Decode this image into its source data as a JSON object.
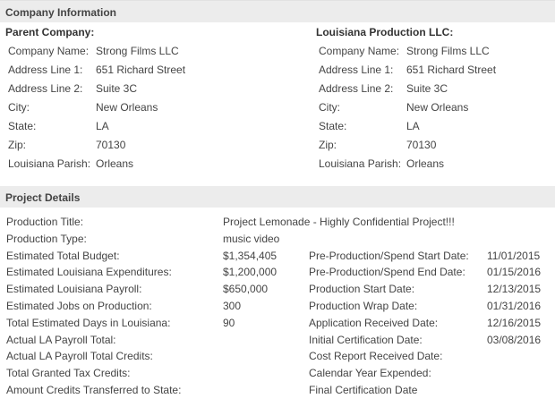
{
  "company_section": {
    "header": "Company Information",
    "parent": {
      "title": "Parent Company:",
      "rows": [
        {
          "label": "Company Name:",
          "value": "Strong Films LLC"
        },
        {
          "label": "Address Line 1:",
          "value": "651 Richard Street"
        },
        {
          "label": "Address Line 2:",
          "value": "Suite 3C"
        },
        {
          "label": "City:",
          "value": "New Orleans"
        },
        {
          "label": "State:",
          "value": "LA"
        },
        {
          "label": "Zip:",
          "value": "70130"
        },
        {
          "label": "Louisiana Parish:",
          "value": "Orleans"
        }
      ]
    },
    "louisiana": {
      "title": "Louisiana Production LLC:",
      "rows": [
        {
          "label": "Company Name:",
          "value": "Strong Films LLC"
        },
        {
          "label": "Address Line 1:",
          "value": "651 Richard Street"
        },
        {
          "label": "Address Line 2:",
          "value": "Suite 3C"
        },
        {
          "label": "City:",
          "value": "New Orleans"
        },
        {
          "label": "State:",
          "value": "LA"
        },
        {
          "label": "Zip:",
          "value": "70130"
        },
        {
          "label": "Louisiana Parish:",
          "value": "Orleans"
        }
      ]
    }
  },
  "project_section": {
    "header": "Project Details",
    "left_rows": [
      {
        "label": "Production Title:",
        "value": "Project Lemonade - Highly Confidential Project!!!"
      },
      {
        "label": "Production Type:",
        "value": "music video"
      },
      {
        "label": "Estimated Total Budget:",
        "value": "$1,354,405"
      },
      {
        "label": "Estimated Louisiana Expenditures:",
        "value": "$1,200,000"
      },
      {
        "label": "Estimated Louisiana Payroll:",
        "value": "$650,000"
      },
      {
        "label": "Estimated Jobs on Production:",
        "value": "300"
      },
      {
        "label": "Total Estimated Days in Louisiana:",
        "value": "90"
      },
      {
        "label": "Actual LA Payroll Total:",
        "value": ""
      },
      {
        "label": "Actual LA Payroll Total Credits:",
        "value": ""
      },
      {
        "label": "Total Granted Tax Credits:",
        "value": ""
      },
      {
        "label": "Amount Credits Transferred to State:",
        "value": ""
      }
    ],
    "date_rows": [
      {
        "label": "Pre-Production/Spend Start Date:",
        "value": "11/01/2015"
      },
      {
        "label": "Pre-Production/Spend End Date:",
        "value": "01/15/2016"
      },
      {
        "label": "Production Start Date:",
        "value": "12/13/2015"
      },
      {
        "label": "Production Wrap Date:",
        "value": "01/31/2016"
      },
      {
        "label": "Application Received Date:",
        "value": "12/16/2015"
      },
      {
        "label": "Initial Certification Date:",
        "value": "03/08/2016"
      },
      {
        "label": "Cost Report Received Date:",
        "value": ""
      },
      {
        "label": "Calendar Year Expended:",
        "value": ""
      },
      {
        "label": "Final Certification Date",
        "value": ""
      }
    ]
  }
}
